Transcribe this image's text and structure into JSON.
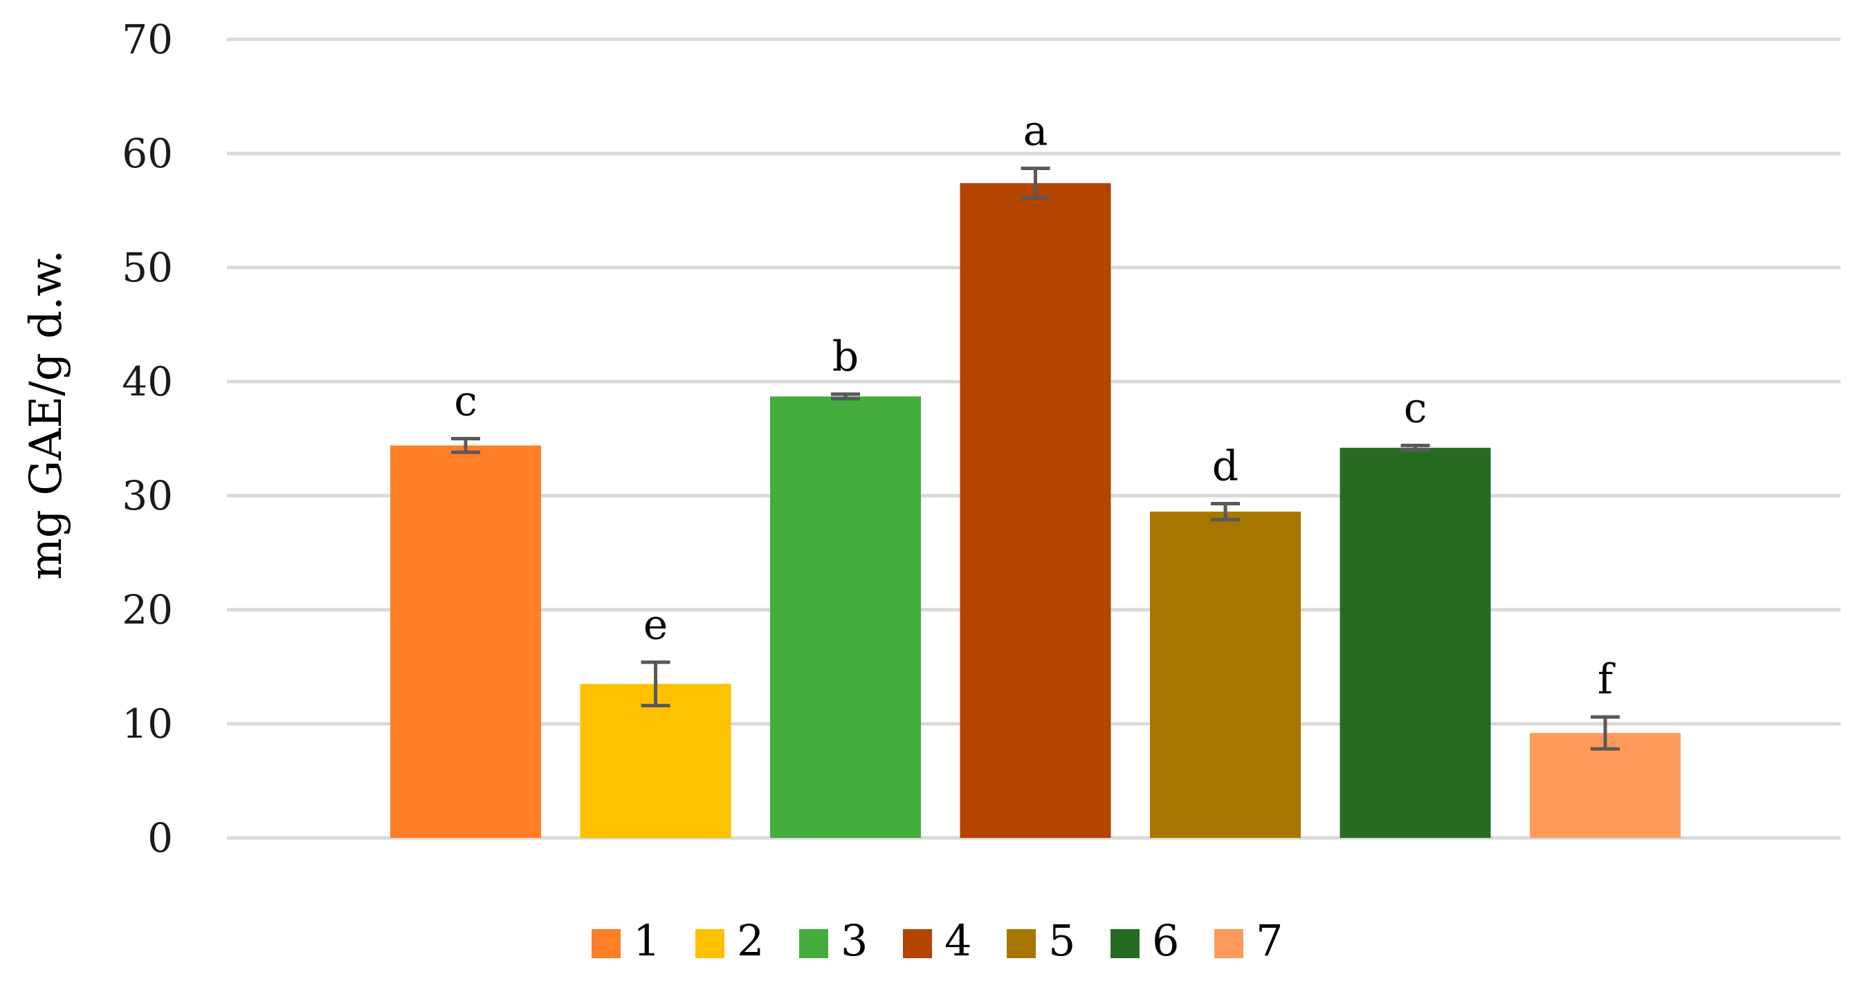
{
  "chart_data": {
    "type": "bar",
    "title": "",
    "xlabel": "",
    "ylabel": "mg GAE/g d.w.",
    "ylim": [
      0,
      70
    ],
    "yticks": [
      0,
      10,
      20,
      30,
      40,
      50,
      60,
      70
    ],
    "grid": true,
    "legend_position": "bottom",
    "series": [
      {
        "name": "1",
        "value": 34.4,
        "error": 0.6,
        "letter": "c",
        "color": "#ff7f27"
      },
      {
        "name": "2",
        "value": 13.5,
        "error": 1.9,
        "letter": "e",
        "color": "#ffc000"
      },
      {
        "name": "3",
        "value": 38.7,
        "error": 0.2,
        "letter": "b",
        "color": "#45ad3d"
      },
      {
        "name": "4",
        "value": 57.4,
        "error": 1.3,
        "letter": "a",
        "color": "#b34500"
      },
      {
        "name": "5",
        "value": 28.6,
        "error": 0.7,
        "letter": "d",
        "color": "#a67600"
      },
      {
        "name": "6",
        "value": 34.2,
        "error": 0.2,
        "letter": "c",
        "color": "#276b23"
      },
      {
        "name": "7",
        "value": 9.2,
        "error": 1.4,
        "letter": "f",
        "color": "#ff9a5a"
      }
    ]
  }
}
